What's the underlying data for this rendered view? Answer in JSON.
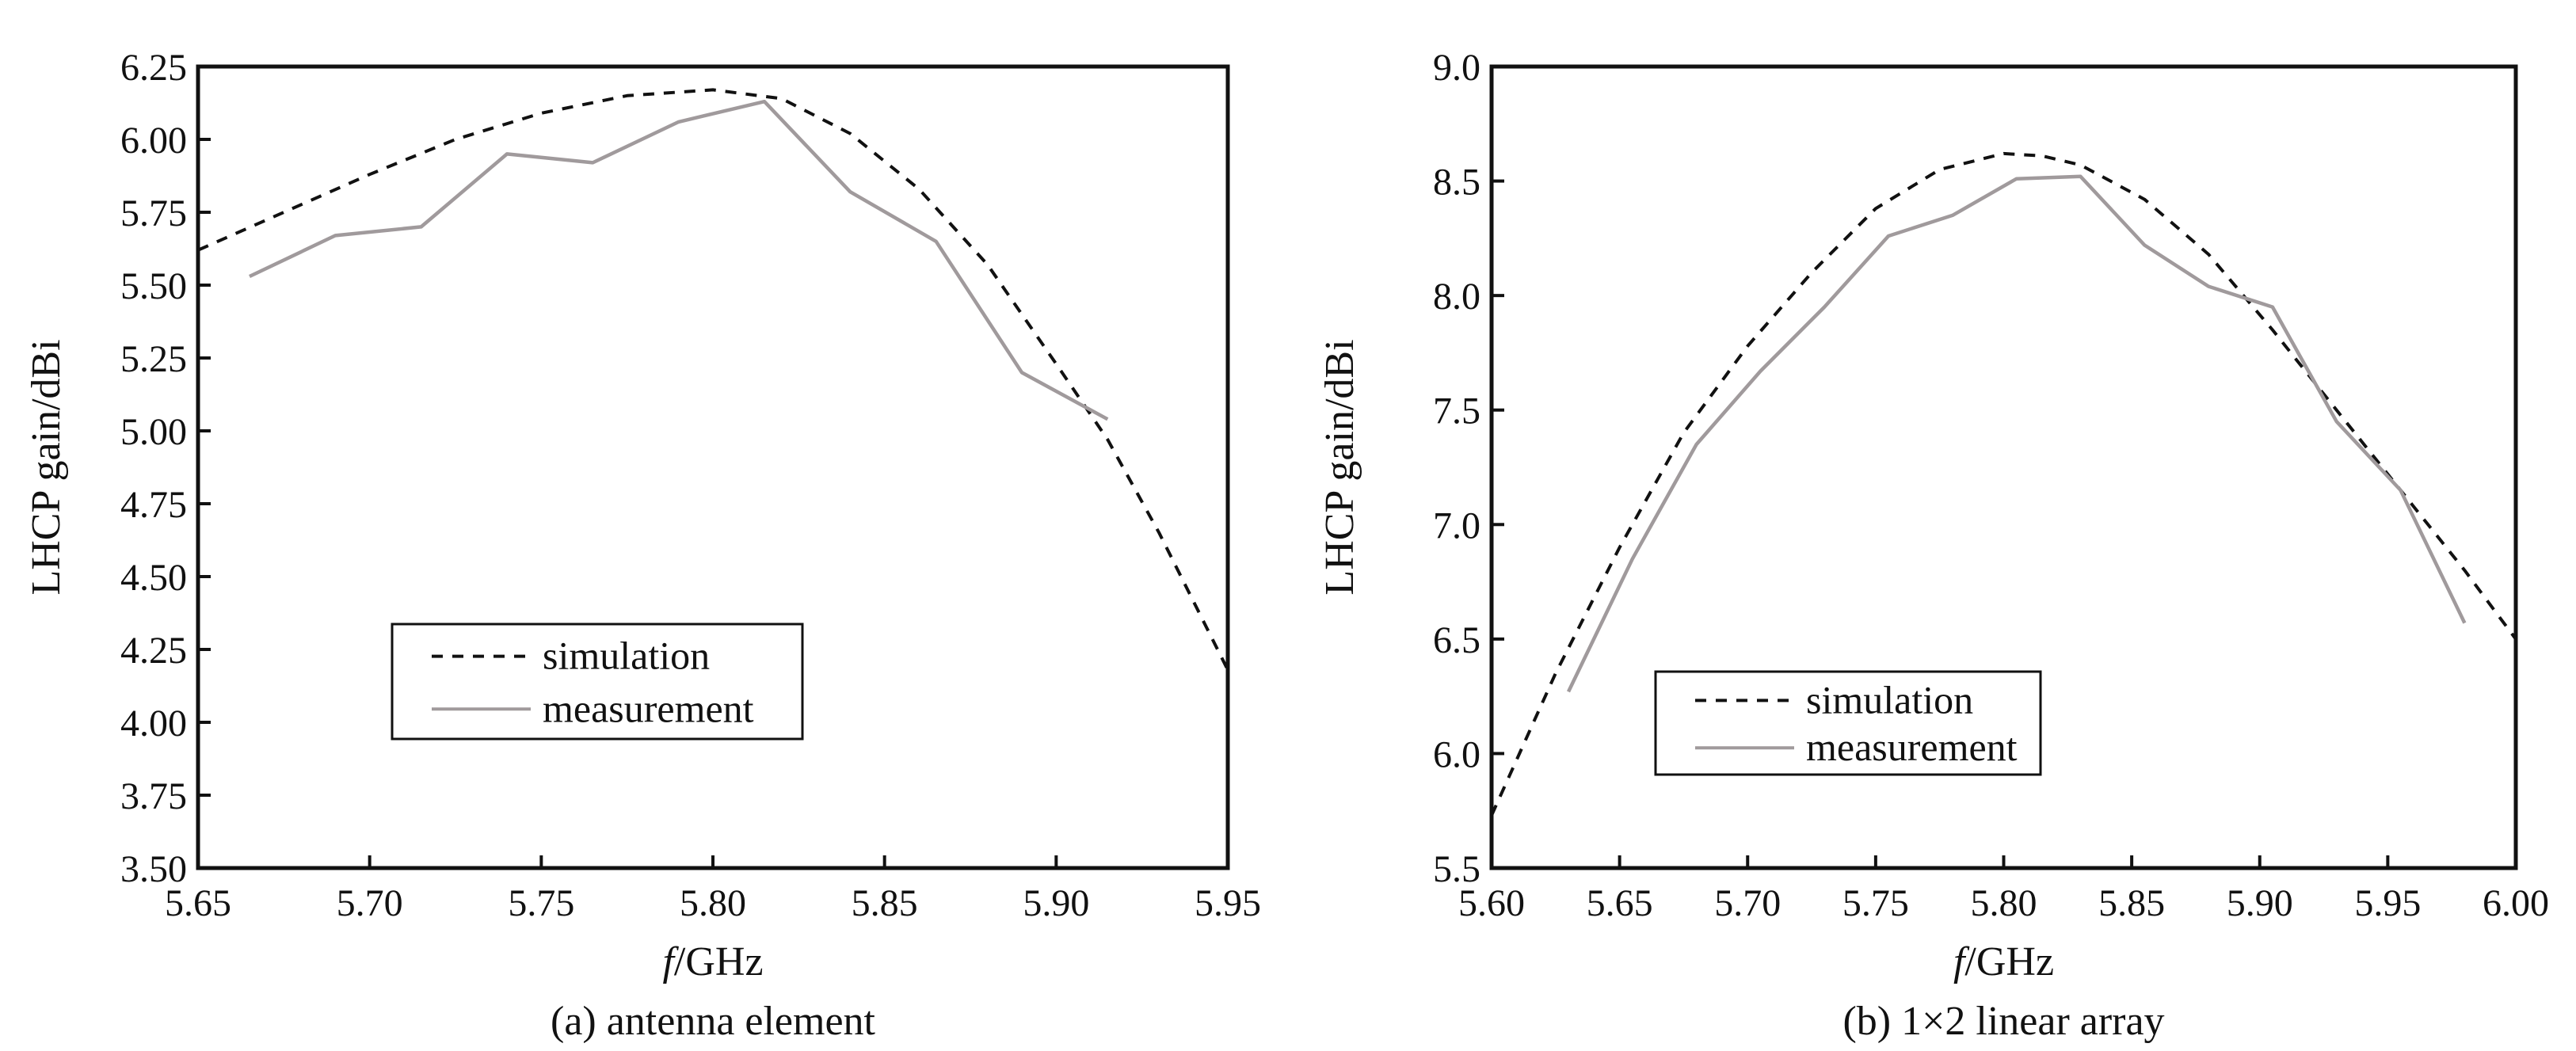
{
  "colors": {
    "simulation": "#111111",
    "measurement": "#a09a9c",
    "axis": "#111111",
    "background": "#ffffff"
  },
  "chart_data": [
    {
      "type": "line",
      "caption": "(a)  antenna element",
      "xlabel_italic": "f",
      "xlabel_rest": "/GHz",
      "ylabel": "LHCP gain/dBi",
      "xlim": [
        5.65,
        5.95
      ],
      "ylim": [
        3.5,
        6.25
      ],
      "x_ticks": [
        "5.65",
        "5.70",
        "5.75",
        "5.80",
        "5.85",
        "5.90",
        "5.95"
      ],
      "y_ticks": [
        "3.50",
        "3.75",
        "4.00",
        "4.25",
        "4.50",
        "4.75",
        "5.00",
        "5.25",
        "5.50",
        "5.75",
        "6.00",
        "6.25"
      ],
      "grid": false,
      "legend_position": "lower-left",
      "legend": [
        "simulation",
        "measurement"
      ],
      "series": [
        {
          "name": "simulation",
          "style": "dashed",
          "x": [
            5.65,
            5.675,
            5.7,
            5.725,
            5.75,
            5.775,
            5.8,
            5.82,
            5.84,
            5.86,
            5.88,
            5.9,
            5.915,
            5.93,
            5.95
          ],
          "y": [
            5.62,
            5.75,
            5.88,
            6.0,
            6.09,
            6.15,
            6.17,
            6.14,
            6.02,
            5.83,
            5.57,
            5.23,
            4.97,
            4.65,
            4.18
          ]
        },
        {
          "name": "measurement",
          "style": "solid",
          "x": [
            5.665,
            5.69,
            5.715,
            5.74,
            5.765,
            5.79,
            5.815,
            5.84,
            5.865,
            5.89,
            5.915
          ],
          "y": [
            5.53,
            5.67,
            5.7,
            5.95,
            5.92,
            6.06,
            6.13,
            5.82,
            5.65,
            5.2,
            5.04
          ]
        }
      ]
    },
    {
      "type": "line",
      "caption": "(b) 1×2 linear array",
      "xlabel_italic": "f",
      "xlabel_rest": "/GHz",
      "ylabel": "LHCP gain/dBi",
      "xlim": [
        5.6,
        6.0
      ],
      "ylim": [
        5.5,
        9.0
      ],
      "x_ticks": [
        "5.60",
        "5.65",
        "5.70",
        "5.75",
        "5.80",
        "5.85",
        "5.90",
        "5.95",
        "6.00"
      ],
      "y_ticks": [
        "5.5",
        "6.0",
        "6.5",
        "7.0",
        "7.5",
        "8.0",
        "8.5",
        "9.0"
      ],
      "grid": false,
      "legend_position": "lower-left",
      "legend": [
        "simulation",
        "measurement"
      ],
      "series": [
        {
          "name": "simulation",
          "style": "dashed",
          "x": [
            5.6,
            5.625,
            5.65,
            5.675,
            5.7,
            5.725,
            5.75,
            5.775,
            5.8,
            5.815,
            5.83,
            5.855,
            5.88,
            5.905,
            5.93,
            5.955,
            5.98,
            6.0
          ],
          "y": [
            5.73,
            6.35,
            6.9,
            7.4,
            7.78,
            8.1,
            8.38,
            8.55,
            8.62,
            8.61,
            8.57,
            8.42,
            8.18,
            7.85,
            7.5,
            7.15,
            6.8,
            6.5
          ]
        },
        {
          "name": "measurement",
          "style": "solid",
          "x": [
            5.63,
            5.655,
            5.68,
            5.705,
            5.73,
            5.755,
            5.78,
            5.805,
            5.83,
            5.855,
            5.88,
            5.905,
            5.93,
            5.955,
            5.98
          ],
          "y": [
            6.27,
            6.85,
            7.35,
            7.67,
            7.95,
            8.26,
            8.35,
            8.51,
            8.52,
            8.22,
            8.04,
            7.95,
            7.45,
            7.15,
            6.57
          ]
        }
      ]
    }
  ]
}
